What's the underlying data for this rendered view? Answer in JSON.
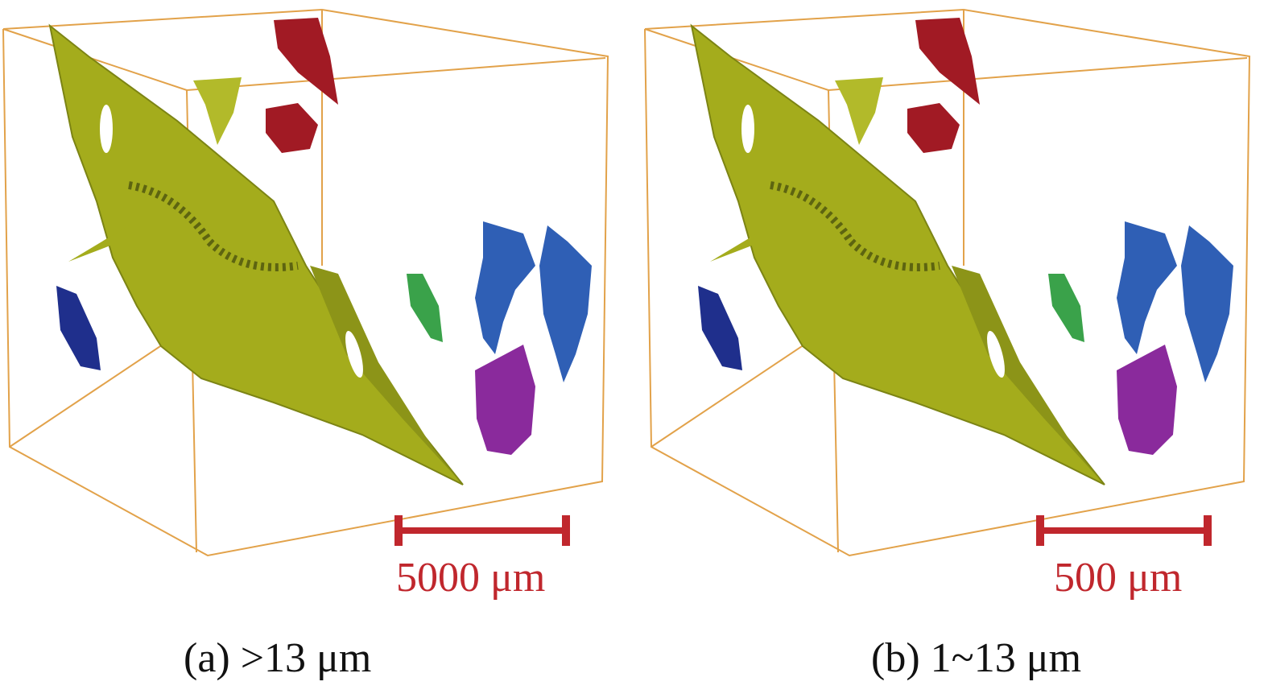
{
  "panels": [
    {
      "id": "a",
      "caption": "(a) >13 μm",
      "scale_bar_label": "5000 μm"
    },
    {
      "id": "b",
      "caption": "(b) 1~13 μm",
      "scale_bar_label": "500 μm"
    }
  ],
  "colors": {
    "box_edge": "#e2a24a",
    "crack_surface": "#a4ac1c",
    "crack_shadow": "#6d7410",
    "pore_red": "#a11a24",
    "pore_blue": "#2f5fb5",
    "pore_navy": "#1f2f8c",
    "pore_green": "#3aa24a",
    "pore_purple": "#8a2a9c",
    "scale_bar": "#c0272d"
  }
}
